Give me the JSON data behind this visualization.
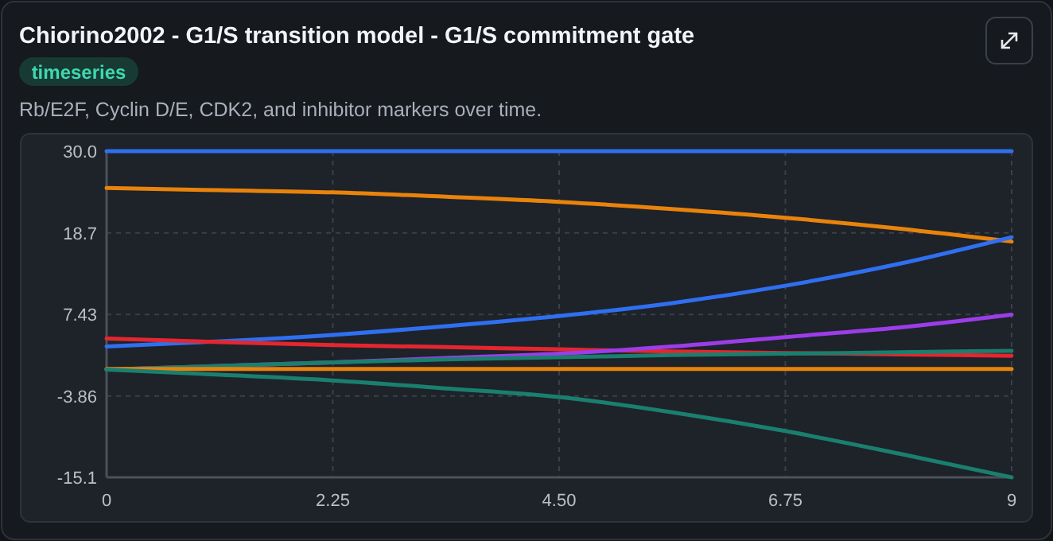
{
  "chart_data": {
    "type": "line",
    "title": "Chiorino2002 - G1/S transition model - G1/S commitment gate",
    "subtitle": "Rb/E2F, Cyclin D/E, CDK2, and inhibitor markers over time.",
    "annotations": [
      "timeseries"
    ],
    "x": [
      0,
      1.125,
      2.25,
      3.375,
      4.5,
      5.625,
      6.75,
      7.875,
      9
    ],
    "series": [
      {
        "color": "#2f6ff0",
        "values": [
          30,
          30,
          30,
          30,
          30,
          30,
          30,
          30,
          30
        ]
      },
      {
        "color": "#e8830c",
        "values": [
          24.9,
          24.6,
          24.3,
          23.7,
          23.0,
          22.0,
          20.8,
          19.3,
          17.5
        ]
      },
      {
        "color": "#2f6ff0",
        "values": [
          3.0,
          3.7,
          4.6,
          5.8,
          7.2,
          9.0,
          11.4,
          14.4,
          18.1
        ]
      },
      {
        "color": "#e5262f",
        "values": [
          4.1,
          3.6,
          3.2,
          2.9,
          2.6,
          2.3,
          2.1,
          1.9,
          1.7
        ]
      },
      {
        "color": "#9b3de8",
        "values": [
          -0.2,
          0.3,
          0.8,
          1.4,
          2.0,
          3.0,
          4.3,
          5.6,
          7.4
        ]
      },
      {
        "color": "#1a7f6e",
        "values": [
          -0.2,
          0.3,
          0.8,
          1.2,
          1.5,
          1.8,
          2.0,
          2.2,
          2.4
        ]
      },
      {
        "color": "#e8830c",
        "values": [
          -0.1,
          -0.1,
          -0.1,
          -0.1,
          -0.1,
          -0.1,
          -0.1,
          -0.1,
          -0.1
        ]
      },
      {
        "color": "#1a7f6e",
        "values": [
          -0.2,
          -0.9,
          -1.7,
          -2.8,
          -4.0,
          -6.1,
          -8.7,
          -11.8,
          -15.1
        ]
      }
    ],
    "xlim": [
      0,
      9
    ],
    "xticks": [
      0,
      2.25,
      "4.50",
      6.75,
      9
    ],
    "ylim": [
      -15.1,
      30.0
    ],
    "yticks": [
      {
        "value": 30,
        "label": "30.0"
      },
      18.7,
      7.43,
      -3.86,
      -15.1
    ],
    "grid": true,
    "marker": "none",
    "line_style": "solid"
  }
}
